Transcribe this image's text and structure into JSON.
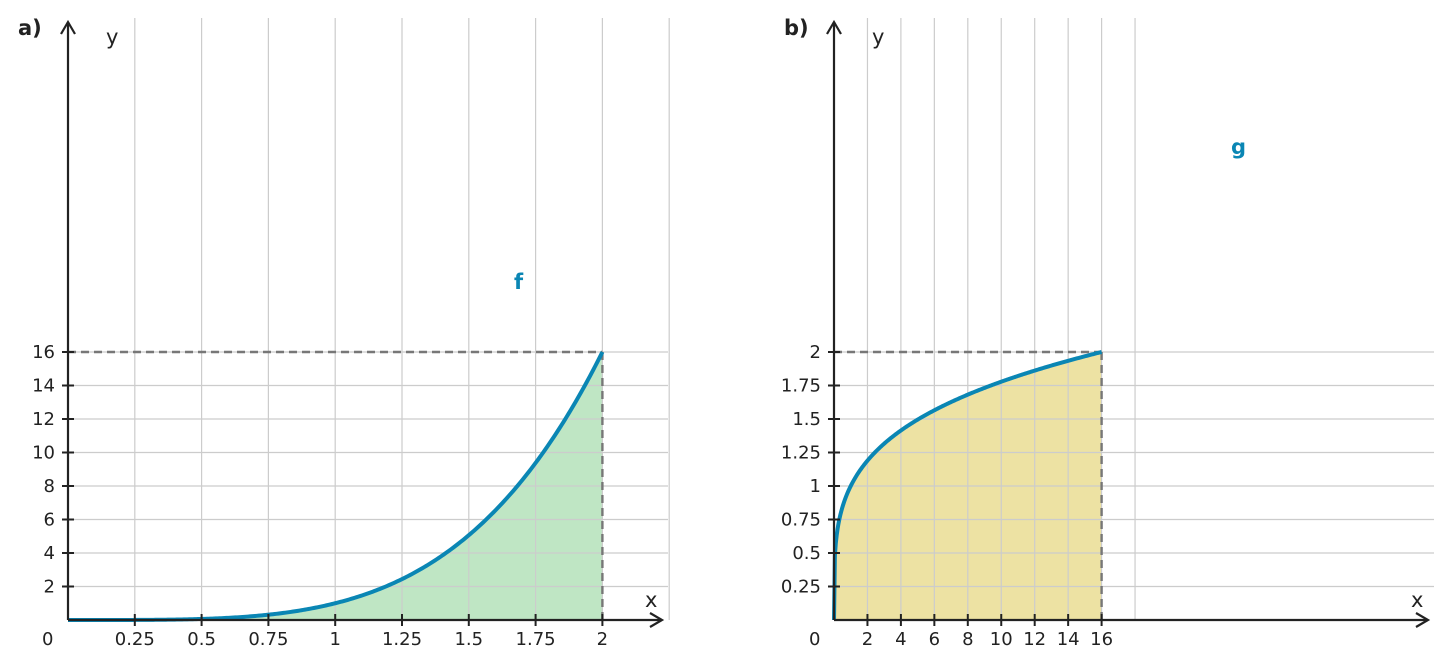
{
  "chart_data": [
    {
      "panel": "a)",
      "type": "area",
      "function_label": "f",
      "xlabel": "x",
      "ylabel": "y",
      "origin_label": "0",
      "x_ticks": [
        "0.25",
        "0.5",
        "0.75",
        "1",
        "1.25",
        "1.5",
        "1.75",
        "2"
      ],
      "y_ticks": [
        "2",
        "4",
        "6",
        "8",
        "10",
        "12",
        "14",
        "16"
      ],
      "xlim": [
        0,
        2.2
      ],
      "ylim": [
        0,
        16
      ],
      "grid": true,
      "fill_color": "#bfe6c4",
      "line_color": "#0a86b4",
      "highlight_point": {
        "x": 2,
        "y": 16
      },
      "series": [
        {
          "x": [
            0,
            0.25,
            0.5,
            0.75,
            1,
            1.25,
            1.5,
            1.75,
            2
          ],
          "y": [
            0,
            0.0039,
            0.0625,
            0.3164,
            1,
            2.4414,
            5.0625,
            9.3789,
            16
          ]
        }
      ]
    },
    {
      "panel": "b)",
      "type": "area",
      "function_label": "g",
      "xlabel": "x",
      "ylabel": "y",
      "origin_label": "0",
      "x_ticks": [
        "2",
        "4",
        "6",
        "8",
        "10",
        "12",
        "14",
        "16"
      ],
      "y_ticks": [
        "0.25",
        "0.5",
        "0.75",
        "1",
        "1.25",
        "1.5",
        "1.75",
        "2"
      ],
      "xlim": [
        0,
        17.6
      ],
      "ylim": [
        0,
        2
      ],
      "grid": true,
      "fill_color": "#ede2a3",
      "line_color": "#0a86b4",
      "highlight_point": {
        "x": 16,
        "y": 2
      },
      "series": [
        {
          "x": [
            0,
            0.5,
            1,
            2,
            4,
            6,
            8,
            10,
            12,
            14,
            16
          ],
          "y": [
            0,
            0.8409,
            1,
            1.1892,
            1.4142,
            1.5651,
            1.6818,
            1.7783,
            1.8612,
            1.9343,
            2
          ]
        }
      ]
    }
  ]
}
